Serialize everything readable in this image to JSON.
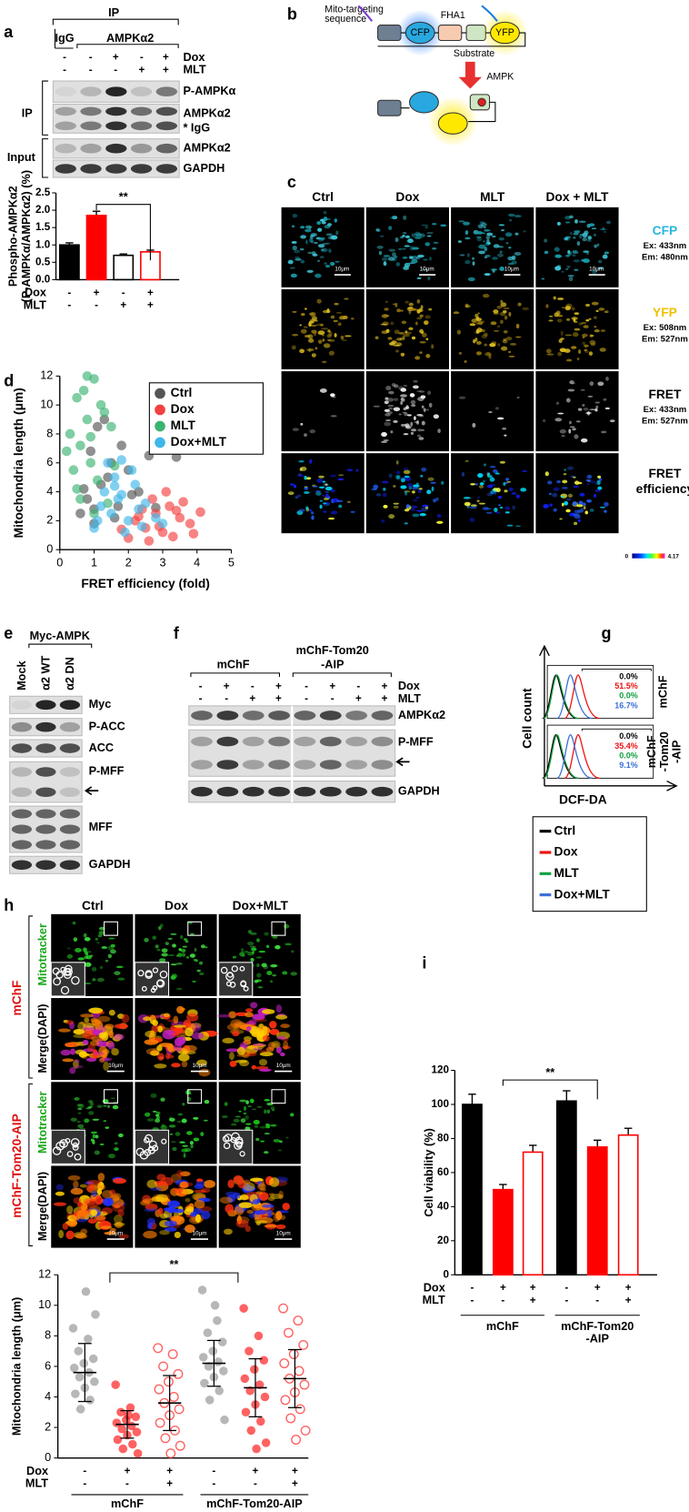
{
  "figure": {
    "a": {
      "letter": "a",
      "ip_header": "IP",
      "igg": "IgG",
      "ampk_header": "AMPKα2",
      "lane_rows": [
        {
          "name": "Dox",
          "signs": [
            "-",
            "-",
            "+",
            "-",
            "+"
          ]
        },
        {
          "name": "MLT",
          "signs": [
            "-",
            "-",
            "-",
            "+",
            "+"
          ]
        }
      ],
      "side_labels": [
        "IP",
        "Input"
      ],
      "bands": [
        "P-AMPKα",
        "AMPKα2",
        "* IgG",
        "AMPKα2",
        "GAPDH"
      ]
    },
    "b": {
      "letter": "b",
      "mito": [
        "Mito-targeting",
        "sequence"
      ],
      "cfp": "CFP",
      "fha1": "FHA1",
      "yfp": "YFP",
      "substrate": "Substrate",
      "ampk": "AMPK"
    },
    "c": {
      "letter": "c",
      "columns": [
        "Ctrl",
        "Dox",
        "MLT",
        "Dox + MLT"
      ],
      "rows": [
        {
          "name": "CFP",
          "color": "#29b6e0",
          "lines": [
            "Ex: 433nm",
            "Em: 480nm"
          ]
        },
        {
          "name": "YFP",
          "color": "#f0c000",
          "lines": [
            "Ex: 508nm",
            "Em: 527nm"
          ]
        },
        {
          "name": "FRET",
          "color": "#000000",
          "lines": [
            "Ex: 433nm",
            "Em: 527nm"
          ]
        },
        {
          "name": "FRET",
          "color": "#000000",
          "lines": [
            "efficiency"
          ]
        }
      ],
      "scale_bar": "10μm",
      "colorbar": [
        "0",
        "4.17"
      ]
    },
    "d": {
      "letter": "d"
    },
    "e": {
      "letter": "e",
      "header": "Myc-AMPK",
      "lanes": [
        "Mock",
        "α2 WT",
        "α2 DN"
      ],
      "bands": [
        "Myc",
        "P-ACC",
        "ACC",
        "P-MFF",
        "MFF",
        "GAPDH"
      ]
    },
    "f": {
      "letter": "f",
      "group1": "mChF",
      "group2": [
        "mChF-Tom20",
        "-AIP"
      ],
      "lane_rows": [
        {
          "name": "Dox",
          "signs": [
            "-",
            "+",
            "-",
            "+",
            "-",
            "+",
            "-",
            "+"
          ]
        },
        {
          "name": "MLT",
          "signs": [
            "-",
            "-",
            "+",
            "+",
            "-",
            "-",
            "+",
            "+"
          ]
        }
      ],
      "bands": [
        "AMPKα2",
        "P-MFF",
        "GAPDH"
      ]
    },
    "g": {
      "letter": "g",
      "y_label": "Cell count",
      "x_label": "DCF-DA",
      "panels": [
        {
          "label": [
            "mChF"
          ],
          "percents": [
            "0.0%",
            "51.5%",
            "0.0%",
            "16.7%"
          ]
        },
        {
          "label": [
            "mChF",
            "-Tom20",
            "-AIP"
          ],
          "percents": [
            "0.0%",
            "35.4%",
            "0.0%",
            "9.1%"
          ]
        }
      ],
      "legend": [
        {
          "name": "Ctrl",
          "color": "#000000"
        },
        {
          "name": "Dox",
          "color": "#ee1111"
        },
        {
          "name": "MLT",
          "color": "#11a040"
        },
        {
          "name": "Dox+MLT",
          "color": "#3a6fd8"
        }
      ]
    },
    "h": {
      "letter": "h",
      "columns": [
        "Ctrl",
        "Dox",
        "Dox+MLT"
      ],
      "groups": [
        "mChF",
        "mChF-Tom20-AIP"
      ],
      "rows": [
        {
          "text": "Mitotracker",
          "color": "#1aa81a"
        },
        {
          "text": "Merge(DAPI)",
          "color": "#000000"
        }
      ],
      "scale_bar": "10μm"
    },
    "i": {
      "letter": "i"
    }
  },
  "chart_data": [
    {
      "type": "bar",
      "y_label": [
        "Phospho-AMPKα2",
        "(P-AMPKα/AMPKα2) (%)"
      ],
      "values": [
        1.0,
        1.85,
        0.7,
        0.8
      ],
      "errors": [
        0.06,
        0.12,
        0.04,
        0.05
      ],
      "fills": [
        "#000000",
        "#ff0000",
        "#ffffff",
        "#ffffff"
      ],
      "strokes": [
        "#000000",
        "#ff0000",
        "#000000",
        "#ff0000"
      ],
      "ylim": [
        0,
        2.5
      ],
      "yticks": [
        {
          "value": 0,
          "label": "0.0"
        },
        {
          "value": 0.5,
          "label": "0.5"
        },
        {
          "value": 1,
          "label": "1.0"
        },
        {
          "value": 1.5,
          "label": "1.5"
        },
        {
          "value": 2,
          "label": "2.0"
        },
        {
          "value": 2.5,
          "label": "2.5"
        }
      ],
      "treatments": [
        {
          "name": "Dox",
          "signs": [
            "-",
            "+",
            "-",
            "+"
          ]
        },
        {
          "name": "MLT",
          "signs": [
            "-",
            "-",
            "+",
            "+"
          ]
        }
      ],
      "significance": "**"
    },
    {
      "type": "scatter",
      "x_label": "FRET efficiency (fold)",
      "y_label": "Mitochondria length (μm)",
      "xlim": [
        0,
        5
      ],
      "xticks": [
        0,
        1,
        2,
        3,
        4,
        5
      ],
      "ylim": [
        0,
        12
      ],
      "yticks": [
        0,
        2,
        4,
        6,
        8,
        10,
        12
      ],
      "legend": "upper right",
      "series": [
        {
          "name": "Ctrl",
          "color": "#555555",
          "x": [
            0.8,
            1.0,
            1.2,
            1.5,
            1.8,
            2.0,
            2.3,
            0.6,
            1.1,
            1.4,
            1.7,
            2.6,
            0.9,
            1.3,
            2.1,
            3.4,
            1.0,
            1.6,
            0.7,
            2.8
          ],
          "y": [
            3.5,
            2.8,
            4.5,
            6.0,
            7.2,
            5.5,
            4.0,
            2.5,
            8.5,
            5.0,
            3.0,
            6.5,
            6.8,
            9.0,
            3.8,
            6.4,
            1.8,
            2.2,
            4.2,
            2.9
          ]
        },
        {
          "name": "Dox",
          "color": "#f44040",
          "x": [
            2.2,
            2.5,
            2.8,
            3.0,
            3.2,
            3.5,
            2.0,
            2.7,
            3.8,
            4.1,
            3.3,
            2.4,
            2.9,
            3.6,
            1.8,
            3.1,
            2.6,
            3.9,
            2.3,
            3.4
          ],
          "y": [
            2.0,
            1.5,
            2.5,
            1.2,
            3.0,
            2.2,
            0.8,
            3.5,
            1.8,
            2.6,
            0.9,
            2.8,
            1.6,
            3.3,
            1.4,
            4.0,
            0.6,
            1.1,
            2.3,
            2.7
          ]
        },
        {
          "name": "MLT",
          "color": "#3cb371",
          "x": [
            0.5,
            0.8,
            1.0,
            0.3,
            0.6,
            1.2,
            0.9,
            1.5,
            0.4,
            0.7,
            1.1,
            0.2,
            1.3,
            0.6,
            0.9,
            1.6,
            0.5,
            1.0,
            0.8,
            1.4
          ],
          "y": [
            10.5,
            9.0,
            11.8,
            8.0,
            7.2,
            10.0,
            6.0,
            8.5,
            5.5,
            11.0,
            4.8,
            6.8,
            9.5,
            3.5,
            7.8,
            5.8,
            4.2,
            2.5,
            12.0,
            3.2
          ]
        },
        {
          "name": "Dox+MLT",
          "color": "#3fb7e8",
          "x": [
            1.2,
            1.5,
            1.8,
            2.0,
            2.2,
            1.0,
            1.6,
            2.5,
            1.3,
            1.9,
            2.3,
            1.4,
            1.7,
            2.1,
            2.8,
            1.1,
            2.4,
            1.6,
            3.0,
            1.8
          ],
          "y": [
            3.0,
            2.5,
            3.8,
            2.0,
            4.5,
            1.5,
            5.0,
            3.2,
            4.0,
            1.2,
            2.8,
            6.0,
            3.5,
            5.5,
            2.2,
            2.0,
            1.6,
            4.4,
            1.8,
            6.2
          ]
        }
      ]
    },
    {
      "type": "dot",
      "y_label": "Mitochondria length (μm)",
      "ylim": [
        0,
        12
      ],
      "yticks": [
        0,
        2,
        4,
        6,
        8,
        10,
        12
      ],
      "points": [
        [
          8.5,
          7.8,
          7.0,
          6.5,
          6.2,
          5.9,
          5.6,
          5.3,
          5.0,
          4.6,
          4.2,
          3.8,
          3.2,
          9.4,
          10.9
        ],
        [
          4.8,
          3.3,
          3.0,
          2.7,
          2.5,
          2.3,
          2.1,
          1.9,
          1.7,
          1.5,
          1.2,
          0.9,
          0.6,
          0.3,
          2.8
        ],
        [
          7.2,
          6.8,
          6.0,
          5.5,
          5.0,
          4.5,
          4.0,
          3.6,
          3.2,
          2.8,
          2.3,
          1.8,
          1.3,
          0.8,
          0.3
        ],
        [
          11.0,
          9.0,
          8.2,
          7.6,
          7.0,
          6.6,
          6.3,
          6.0,
          5.7,
          5.3,
          4.9,
          4.4,
          3.8,
          2.5,
          10.0
        ],
        [
          9.8,
          8.0,
          7.0,
          6.4,
          5.8,
          5.2,
          4.8,
          4.4,
          4.0,
          3.5,
          3.0,
          2.4,
          1.8,
          1.0,
          0.6
        ],
        [
          9.8,
          9.0,
          8.2,
          7.4,
          6.8,
          6.2,
          5.7,
          5.2,
          4.8,
          4.3,
          3.8,
          3.2,
          2.6,
          1.8,
          1.2
        ]
      ],
      "means": [
        5.6,
        2.2,
        3.6,
        6.2,
        4.6,
        5.2
      ],
      "sds": [
        1.9,
        0.9,
        1.8,
        1.5,
        1.9,
        1.9
      ],
      "colors": [
        "#999999",
        "#ff2020",
        "#ff2020",
        "#999999",
        "#ff2020",
        "#ff2020"
      ],
      "hollow": [
        false,
        false,
        true,
        false,
        false,
        true
      ],
      "treatments": [
        {
          "name": "Dox",
          "signs": [
            "-",
            "+",
            "+",
            "-",
            "+",
            "+"
          ]
        },
        {
          "name": "MLT",
          "signs": [
            "-",
            "-",
            "+",
            "-",
            "-",
            "+"
          ]
        }
      ],
      "groups": [
        [
          "mChF"
        ],
        [
          "mChF-Tom20-AIP"
        ]
      ],
      "significance": "**"
    },
    {
      "type": "bar",
      "y_label": [
        "Cell viability (%)"
      ],
      "values": [
        100,
        50,
        72,
        102,
        75,
        82
      ],
      "errors": [
        6,
        3,
        4,
        6,
        4,
        4
      ],
      "fills": [
        "#000000",
        "#ff0000",
        "#ffffff",
        "#000000",
        "#ff0000",
        "#ffffff"
      ],
      "strokes": [
        "#000000",
        "#ff0000",
        "#ff0000",
        "#000000",
        "#ff0000",
        "#ff0000"
      ],
      "ylim": [
        0,
        120
      ],
      "yticks": [
        0,
        20,
        40,
        60,
        80,
        100,
        120
      ],
      "treatments": [
        {
          "name": "Dox",
          "signs": [
            "-",
            "+",
            "+",
            "-",
            "+",
            "+"
          ]
        },
        {
          "name": "MLT",
          "signs": [
            "-",
            "-",
            "+",
            "-",
            "-",
            "+"
          ]
        }
      ],
      "groups": [
        [
          "mChF"
        ],
        [
          "mChF-Tom20",
          "-AIP"
        ]
      ],
      "significance": "**"
    }
  ]
}
